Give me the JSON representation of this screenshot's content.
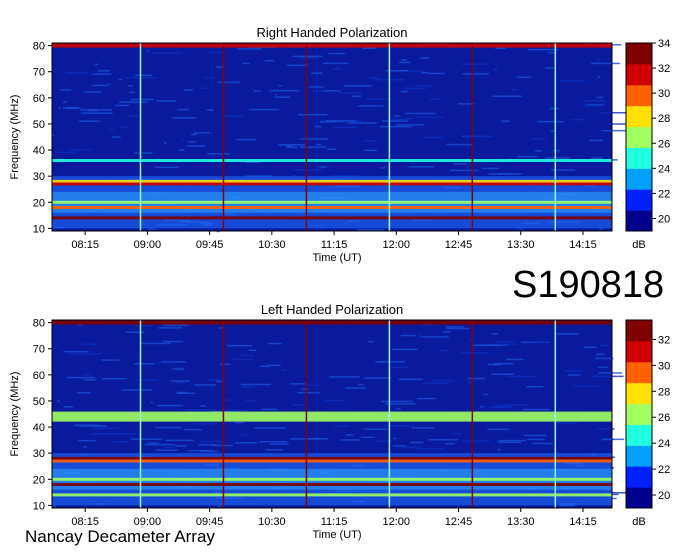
{
  "figure": {
    "event_label": "S190818",
    "credit": "Nancay Decameter Array"
  },
  "colors": {
    "background": "#0a1a9c",
    "vertical_cyan": "#9ff2e6",
    "vertical_red": "#8a0000",
    "colorscale": [
      "#00008f",
      "#0020ff",
      "#00a0ff",
      "#20ffe0",
      "#a0ff60",
      "#ffe000",
      "#ff6000",
      "#d00000",
      "#800000"
    ]
  },
  "chart_data": [
    {
      "type": "heatmap",
      "title": "Right Handed Polarization",
      "xlabel": "Time (UT)",
      "ylabel": "Frequency (MHz)",
      "x_ticks": [
        "08:15",
        "09:00",
        "09:45",
        "10:30",
        "11:15",
        "12:00",
        "12:45",
        "13:30",
        "14:15"
      ],
      "xlim_hours": [
        7.85,
        14.6
      ],
      "y_ticks": [
        10,
        20,
        30,
        40,
        50,
        60,
        70,
        80
      ],
      "ylim": [
        9,
        81
      ],
      "colorbar": {
        "label": "dB",
        "range": [
          19,
          34
        ],
        "ticks": [
          20,
          22,
          24,
          26,
          28,
          30,
          32,
          34
        ]
      },
      "band_features_mhz": [
        {
          "freq": 80,
          "level": 31
        },
        {
          "freq": 36,
          "level": 25
        },
        {
          "freq": 28,
          "level": 28
        },
        {
          "freq": 27,
          "level": 32
        },
        {
          "freq": 20,
          "level": 27
        },
        {
          "freq": 18,
          "level": 30
        },
        {
          "freq": 14,
          "level": 33
        }
      ],
      "vertical_lines": [
        {
          "time": "08:55",
          "kind": "cyan"
        },
        {
          "time": "09:55",
          "kind": "red"
        },
        {
          "time": "10:55",
          "kind": "red"
        },
        {
          "time": "11:55",
          "kind": "cyan"
        },
        {
          "time": "12:55",
          "kind": "red"
        },
        {
          "time": "13:55",
          "kind": "cyan"
        }
      ]
    },
    {
      "type": "heatmap",
      "title": "Left Handed Polarization",
      "xlabel": "Time (UT)",
      "ylabel": "Frequency (MHz)",
      "x_ticks": [
        "08:15",
        "09:00",
        "09:45",
        "10:30",
        "11:15",
        "12:00",
        "12:45",
        "13:30",
        "14:15"
      ],
      "xlim_hours": [
        7.85,
        14.6
      ],
      "y_ticks": [
        10,
        20,
        30,
        40,
        50,
        60,
        70,
        80
      ],
      "ylim": [
        9,
        81
      ],
      "colorbar": {
        "label": "dB",
        "range": [
          19,
          33.5
        ],
        "ticks": [
          20,
          22,
          24,
          26,
          28,
          30,
          32
        ]
      },
      "band_features_mhz": [
        {
          "freq": 80,
          "level": 32
        },
        {
          "freq": 44,
          "level": 27
        },
        {
          "freq": 28,
          "level": 32
        },
        {
          "freq": 27,
          "level": 29
        },
        {
          "freq": 20,
          "level": 27
        },
        {
          "freq": 18,
          "level": 33
        },
        {
          "freq": 14,
          "level": 26
        }
      ],
      "vertical_lines": [
        {
          "time": "08:55",
          "kind": "cyan"
        },
        {
          "time": "09:55",
          "kind": "red"
        },
        {
          "time": "10:55",
          "kind": "red"
        },
        {
          "time": "11:55",
          "kind": "cyan"
        },
        {
          "time": "12:55",
          "kind": "red"
        },
        {
          "time": "13:55",
          "kind": "cyan"
        }
      ]
    }
  ]
}
